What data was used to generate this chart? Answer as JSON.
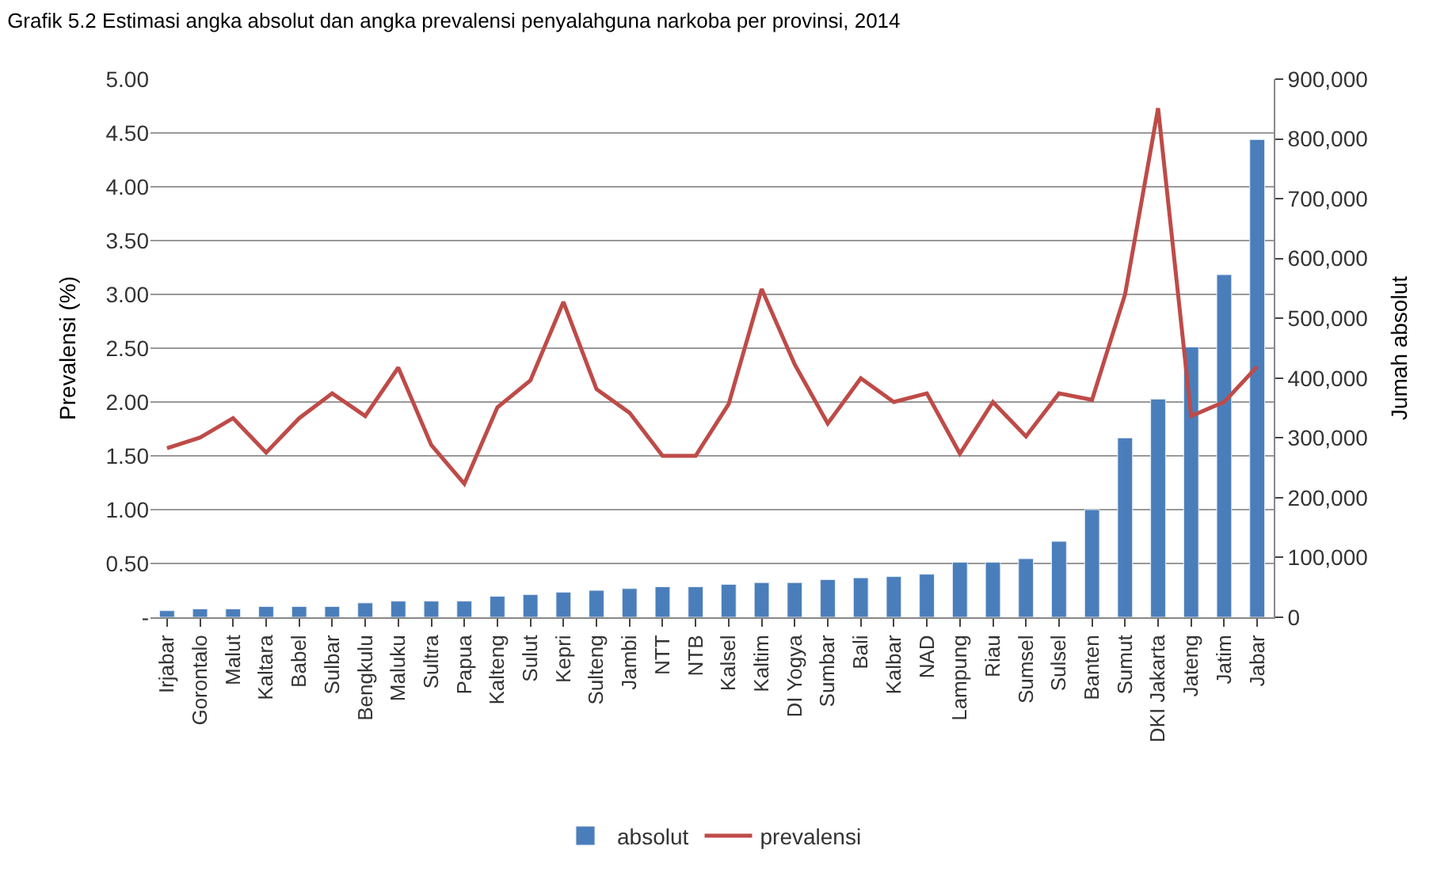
{
  "chart_data": {
    "type": "bar",
    "title": "Grafik 5.2 Estimasi angka absolut dan angka prevalensi penyalahguna narkoba per provinsi, 2014",
    "ylabel": "Prevalensi (%)",
    "y2label": "Jumah absolut",
    "categories": [
      "Irjabar",
      "Gorontalo",
      "Malut",
      "Kaltara",
      "Babel",
      "Sulbar",
      "Bengkulu",
      "Maluku",
      "Sultra",
      "Papua",
      "Kalteng",
      "Sulut",
      "Kepri",
      "Sulteng",
      "Jambi",
      "NTT",
      "NTB",
      "Kalsel",
      "Kaltim",
      "DI Yogya",
      "Sumbar",
      "Bali",
      "Kalbar",
      "NAD",
      "Lampung",
      "Riau",
      "Sumsel",
      "Sulsel",
      "Banten",
      "Sumut",
      "DKI Jakarta",
      "Jateng",
      "Jatim",
      "Jabar"
    ],
    "series": [
      {
        "name": "absolut",
        "axis": "y2",
        "color": "#4a7ebb",
        "values": [
          11000,
          14000,
          14000,
          18000,
          18000,
          18000,
          24000,
          27000,
          27000,
          27000,
          35000,
          38000,
          42000,
          45000,
          48000,
          51000,
          51000,
          55000,
          58000,
          58000,
          63000,
          66000,
          68000,
          72000,
          92000,
          92000,
          98000,
          127000,
          180000,
          300000,
          365000,
          452000,
          573000,
          799000
        ]
      },
      {
        "name": "prevalensi",
        "type": "line",
        "axis": "y",
        "color": "#be4b48",
        "values": [
          1.57,
          1.67,
          1.85,
          1.53,
          1.85,
          2.08,
          1.87,
          2.32,
          1.6,
          1.24,
          1.95,
          2.2,
          2.93,
          2.12,
          1.9,
          1.5,
          1.5,
          1.98,
          3.05,
          2.35,
          1.8,
          2.22,
          2.0,
          2.08,
          1.52,
          2.0,
          1.68,
          2.08,
          2.02,
          3.0,
          4.73,
          1.87,
          2.0,
          2.33
        ]
      }
    ],
    "ylim": [
      0,
      5
    ],
    "yticks": [
      {
        "value": 0,
        "label": "-"
      },
      {
        "value": 0.5,
        "label": "0.50"
      },
      {
        "value": 1,
        "label": "1.00"
      },
      {
        "value": 1.5,
        "label": "1.50"
      },
      {
        "value": 2,
        "label": "2.00"
      },
      {
        "value": 2.5,
        "label": "2.50"
      },
      {
        "value": 3,
        "label": "3.00"
      },
      {
        "value": 3.5,
        "label": "3.50"
      },
      {
        "value": 4,
        "label": "4.00"
      },
      {
        "value": 4.5,
        "label": "4.50"
      },
      {
        "value": 5,
        "label": "5.00"
      }
    ],
    "y2lim": [
      0,
      900000
    ],
    "y2ticks": [
      {
        "value": 0,
        "label": "0"
      },
      {
        "value": 100000,
        "label": "100,000"
      },
      {
        "value": 200000,
        "label": "200,000"
      },
      {
        "value": 300000,
        "label": "300,000"
      },
      {
        "value": 400000,
        "label": "400,000"
      },
      {
        "value": 500000,
        "label": "500,000"
      },
      {
        "value": 600000,
        "label": "600,000"
      },
      {
        "value": 700000,
        "label": "700,000"
      },
      {
        "value": 800000,
        "label": "800,000"
      },
      {
        "value": 900000,
        "label": "900,000"
      }
    ],
    "grid": "y",
    "legend": "bottom",
    "marker": "none",
    "line_style": "solid"
  }
}
